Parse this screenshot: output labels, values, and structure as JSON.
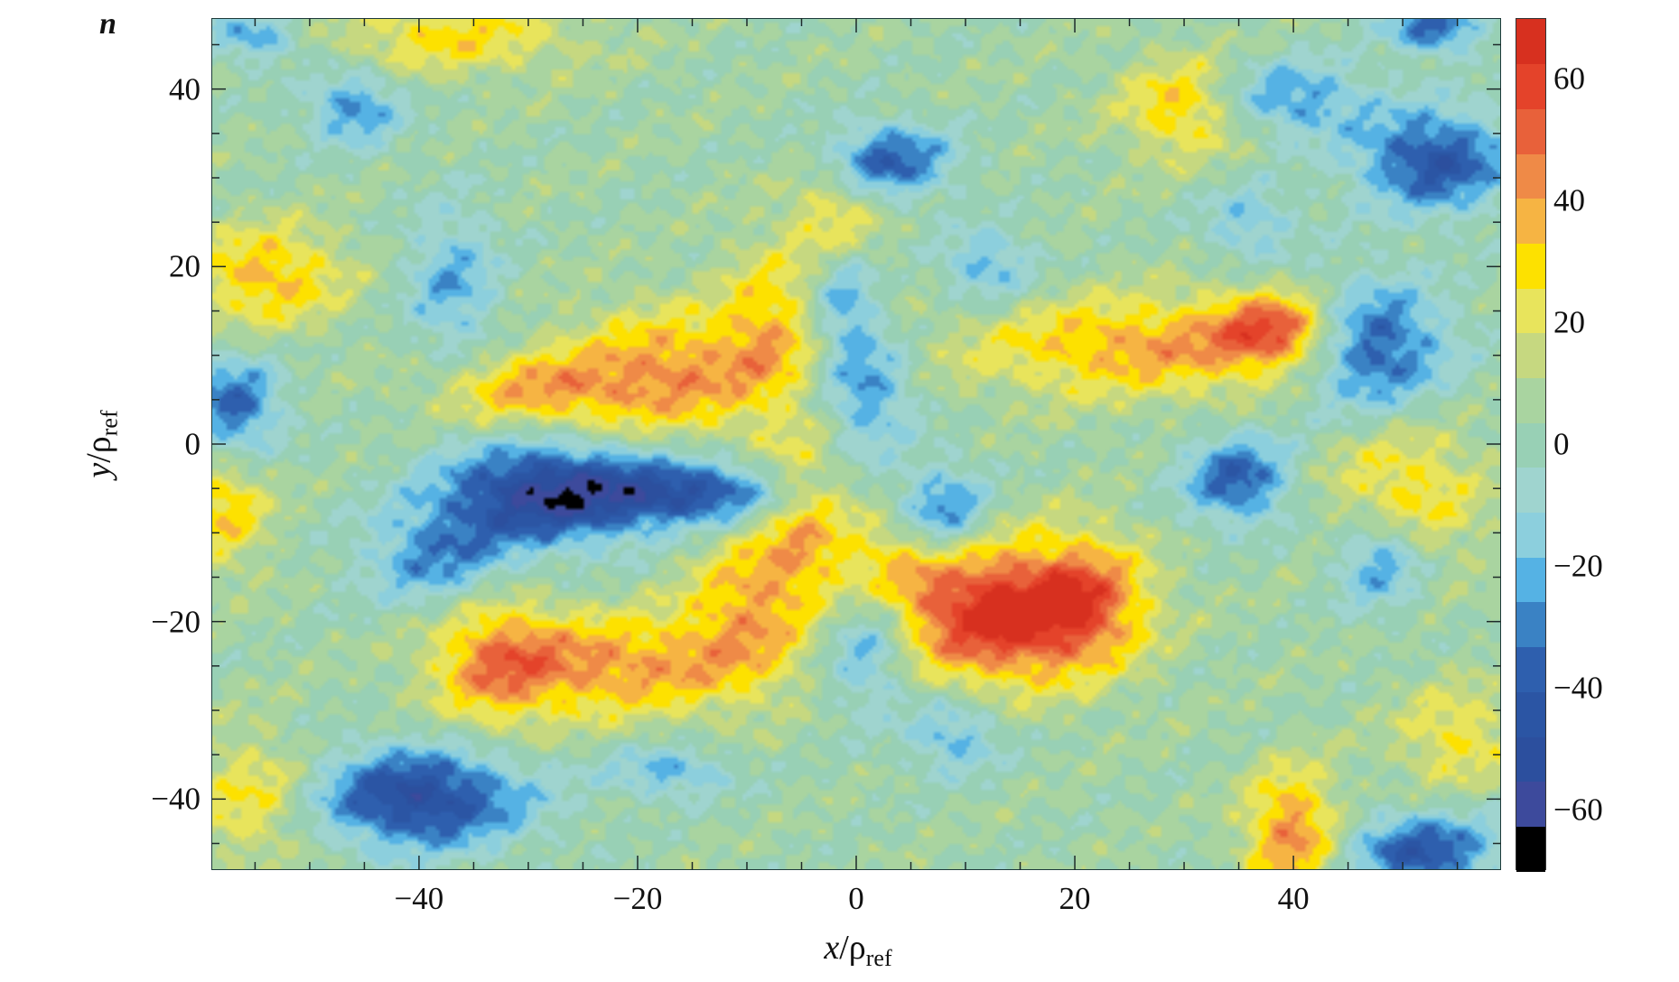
{
  "chart_data": {
    "type": "heatmap",
    "style": "filled-contour",
    "title": "n",
    "xlabel": {
      "var": "x",
      "sep": "/",
      "sym": "ρ",
      "sub": "ref"
    },
    "ylabel": {
      "var": "y",
      "sep": "/",
      "sym": "ρ",
      "sub": "ref"
    },
    "xlim": [
      -59,
      59
    ],
    "ylim": [
      -48,
      48
    ],
    "xticks": [
      -40,
      -20,
      0,
      20,
      40
    ],
    "xtick_labels": [
      "−40",
      "−20",
      "0",
      "20",
      "40"
    ],
    "yticks": [
      -40,
      -20,
      0,
      20,
      40
    ],
    "ytick_labels": [
      "−40",
      "−20",
      "0",
      "20",
      "40"
    ],
    "minor_tick_step": 5,
    "colorbar": {
      "range": [
        -70,
        70
      ],
      "levels": 19,
      "ticks": [
        60,
        40,
        20,
        0,
        -20,
        -40,
        -60
      ],
      "tick_labels": [
        "60",
        "40",
        "20",
        "0",
        "−20",
        "−40",
        "−60"
      ],
      "colors_low_to_high": [
        "#000000",
        "#3d4a9c",
        "#2c4f9e",
        "#2b55a4",
        "#2e5fae",
        "#3a82c4",
        "#55b2e4",
        "#8ccfdd",
        "#9fd4cf",
        "#98d0b5",
        "#a9d4a0",
        "#c6d880",
        "#e8e45c",
        "#fde100",
        "#f6b443",
        "#ef8a47",
        "#e8613a",
        "#e4432a",
        "#d7301f"
      ]
    },
    "background_level": 4,
    "features": [
      {
        "x": 13,
        "y": -20,
        "amp": 58,
        "sx": 7,
        "sy": 5
      },
      {
        "x": 6,
        "y": -13,
        "amp": 30,
        "sx": 6,
        "sy": 4
      },
      {
        "x": 21,
        "y": -17,
        "amp": 35,
        "sx": 4,
        "sy": 5
      },
      {
        "x": -22,
        "y": -25,
        "amp": 38,
        "sx": 9,
        "sy": 4
      },
      {
        "x": -33,
        "y": -24,
        "amp": 30,
        "sx": 4,
        "sy": 6
      },
      {
        "x": -10,
        "y": -18,
        "amp": 30,
        "sx": 4,
        "sy": 6
      },
      {
        "x": -17,
        "y": 8,
        "amp": 38,
        "sx": 7,
        "sy": 5
      },
      {
        "x": -30,
        "y": 6,
        "amp": 30,
        "sx": 6,
        "sy": 3
      },
      {
        "x": -8,
        "y": 14,
        "amp": 25,
        "sx": 3,
        "sy": 6
      },
      {
        "x": 27,
        "y": 11,
        "amp": 35,
        "sx": 12,
        "sy": 4
      },
      {
        "x": 39,
        "y": 13,
        "amp": 45,
        "sx": 4,
        "sy": 3
      },
      {
        "x": -54,
        "y": 19,
        "amp": 32,
        "sx": 5,
        "sy": 4
      },
      {
        "x": -37,
        "y": 46,
        "amp": 25,
        "sx": 8,
        "sy": 3
      },
      {
        "x": 30,
        "y": 38,
        "amp": 30,
        "sx": 4,
        "sy": 4
      },
      {
        "x": 40,
        "y": -44,
        "amp": 42,
        "sx": 3,
        "sy": 5
      },
      {
        "x": 50,
        "y": -6,
        "amp": 28,
        "sx": 5,
        "sy": 6
      },
      {
        "x": 55,
        "y": -33,
        "amp": 22,
        "sx": 4,
        "sy": 4
      },
      {
        "x": -2,
        "y": 26,
        "amp": 22,
        "sx": 3,
        "sy": 4
      },
      {
        "x": -58,
        "y": -7,
        "amp": 28,
        "sx": 3,
        "sy": 5
      },
      {
        "x": -55,
        "y": -40,
        "amp": 25,
        "sx": 4,
        "sy": 5
      },
      {
        "x": -5,
        "y": -8,
        "amp": 26,
        "sx": 3,
        "sy": 7
      },
      {
        "x": -28,
        "y": -5.5,
        "amp": -62,
        "sx": 7,
        "sy": 4
      },
      {
        "x": -14,
        "y": -5.5,
        "amp": -45,
        "sx": 6,
        "sy": 2.5
      },
      {
        "x": -38,
        "y": -13,
        "amp": -32,
        "sx": 5,
        "sy": 4
      },
      {
        "x": -40,
        "y": -40,
        "amp": -55,
        "sx": 7,
        "sy": 4
      },
      {
        "x": 47,
        "y": 11,
        "amp": -52,
        "sx": 5,
        "sy": 5
      },
      {
        "x": 53,
        "y": 32,
        "amp": -48,
        "sx": 5,
        "sy": 4
      },
      {
        "x": 3,
        "y": 32,
        "amp": -42,
        "sx": 4,
        "sy": 3
      },
      {
        "x": 35,
        "y": -4,
        "amp": -42,
        "sx": 3.5,
        "sy": 3.5
      },
      {
        "x": 8,
        "y": -8.5,
        "amp": -42,
        "sx": 3,
        "sy": 4
      },
      {
        "x": 1,
        "y": 6,
        "amp": -32,
        "sx": 3,
        "sy": 5
      },
      {
        "x": -1,
        "y": 16,
        "amp": -26,
        "sx": 2,
        "sy": 4
      },
      {
        "x": -57,
        "y": 4,
        "amp": -42,
        "sx": 3,
        "sy": 4
      },
      {
        "x": 48,
        "y": -13,
        "amp": -36,
        "sx": 3,
        "sy": 4
      },
      {
        "x": 1,
        "y": -23,
        "amp": -32,
        "sx": 3,
        "sy": 5
      },
      {
        "x": 9,
        "y": -33,
        "amp": -26,
        "sx": 3,
        "sy": 3
      },
      {
        "x": 40,
        "y": 39,
        "amp": -30,
        "sx": 5,
        "sy": 3
      },
      {
        "x": 53,
        "y": 47,
        "amp": -42,
        "sx": 3,
        "sy": 2
      },
      {
        "x": 52,
        "y": -46,
        "amp": -45,
        "sx": 5,
        "sy": 3
      },
      {
        "x": -46,
        "y": 38,
        "amp": -32,
        "sx": 3,
        "sy": 3
      },
      {
        "x": -37,
        "y": 18,
        "amp": -26,
        "sx": 3,
        "sy": 6
      },
      {
        "x": -17,
        "y": -37,
        "amp": -26,
        "sx": 4,
        "sy": 2
      },
      {
        "x": 12,
        "y": 20,
        "amp": -26,
        "sx": 3,
        "sy": 3
      },
      {
        "x": -55,
        "y": 46,
        "amp": -30,
        "sx": 3,
        "sy": 2
      },
      {
        "x": 36,
        "y": 25,
        "amp": -22,
        "sx": 3,
        "sy": 3
      }
    ]
  }
}
